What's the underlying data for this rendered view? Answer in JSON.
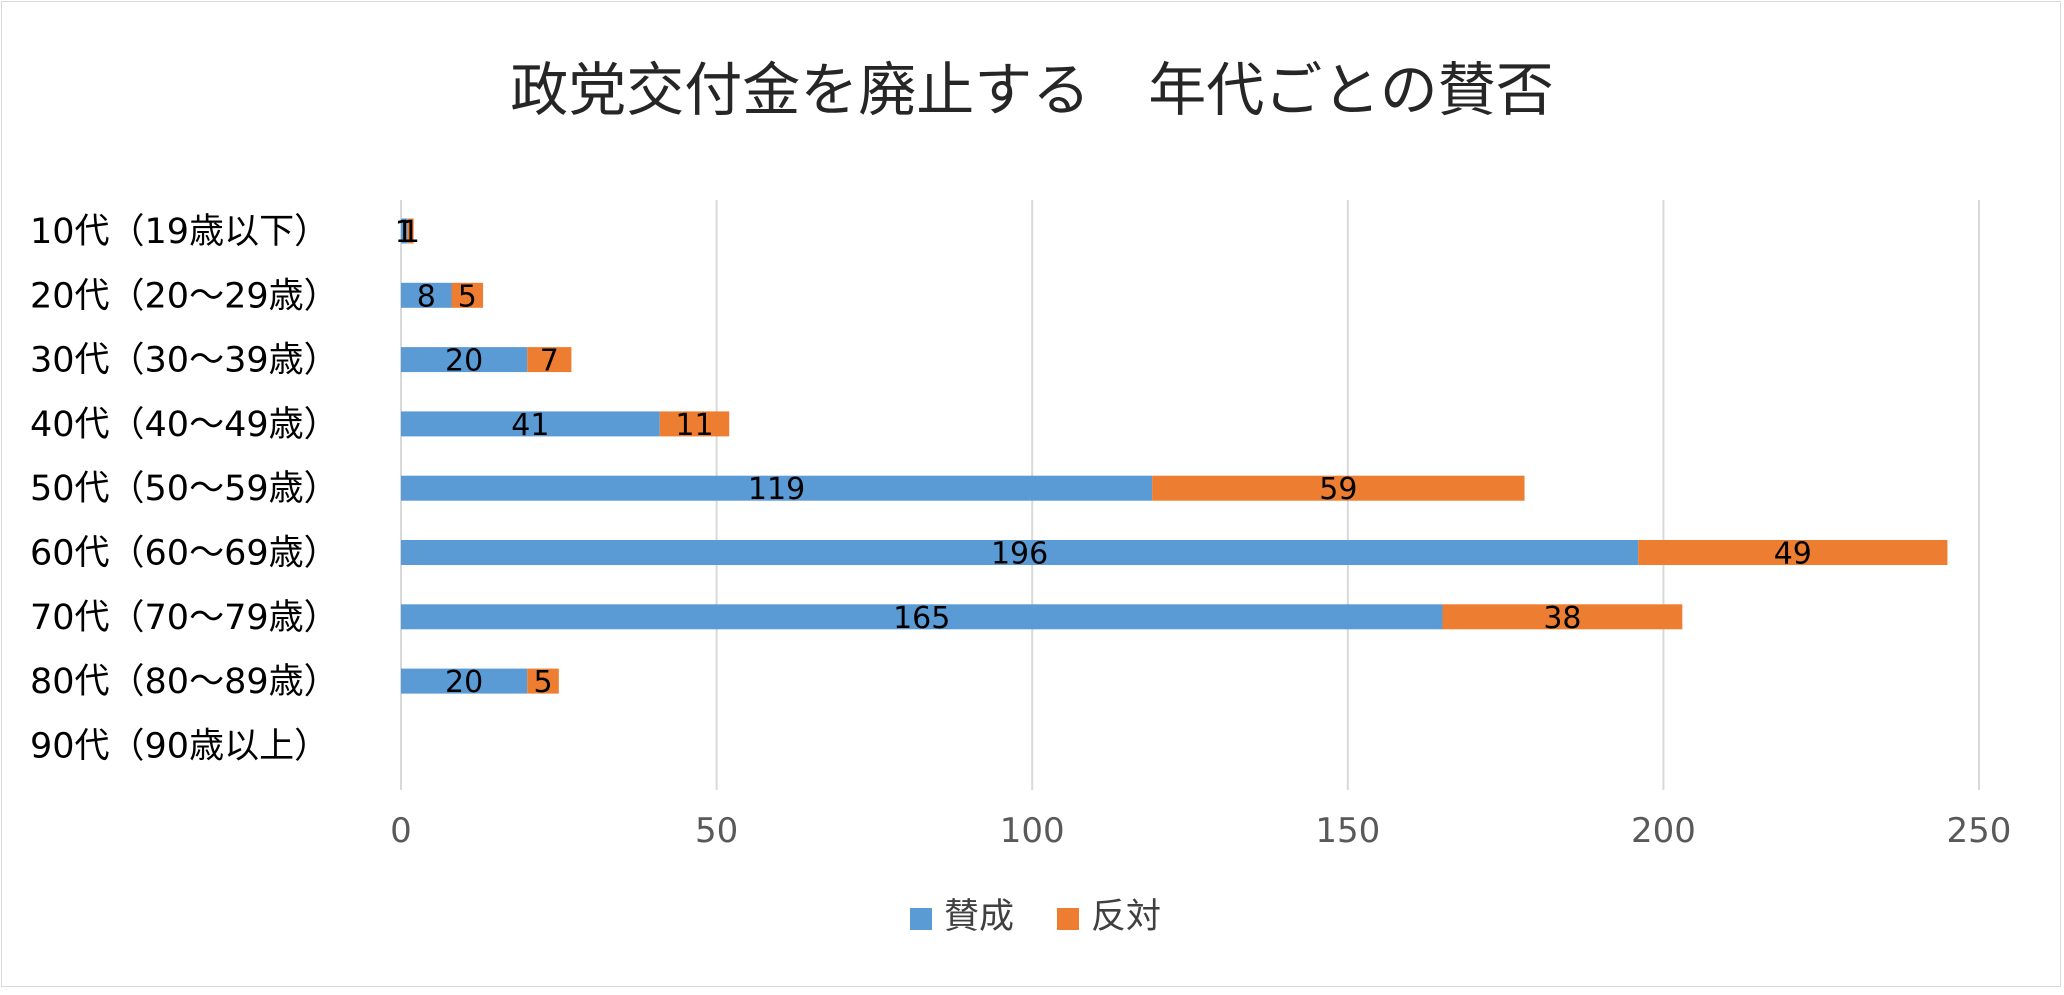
{
  "chart_data": {
    "type": "bar",
    "orientation": "horizontal",
    "stacked": true,
    "title": "政党交付金を廃止する　年代ごとの賛否",
    "categories": [
      "10代（19歳以下）",
      "20代（20〜29歳）",
      "30代（30〜39歳）",
      "40代（40〜49歳）",
      "50代（50〜59歳）",
      "60代（60〜69歳）",
      "70代（70〜79歳）",
      "80代（80〜89歳）",
      "90代（90歳以上）"
    ],
    "series": [
      {
        "name": "賛成",
        "color": "#5b9bd5",
        "values": [
          1,
          8,
          20,
          41,
          119,
          196,
          165,
          20,
          null
        ]
      },
      {
        "name": "反対",
        "color": "#ed7d31",
        "values": [
          1,
          5,
          7,
          11,
          59,
          49,
          38,
          5,
          null
        ]
      }
    ],
    "xlim": [
      0,
      250
    ],
    "xticks": [
      0,
      50,
      100,
      150,
      200,
      250
    ],
    "xlabel": "",
    "ylabel": "",
    "grid": "vertical",
    "legend": "bottom-center",
    "data_labels": true
  }
}
